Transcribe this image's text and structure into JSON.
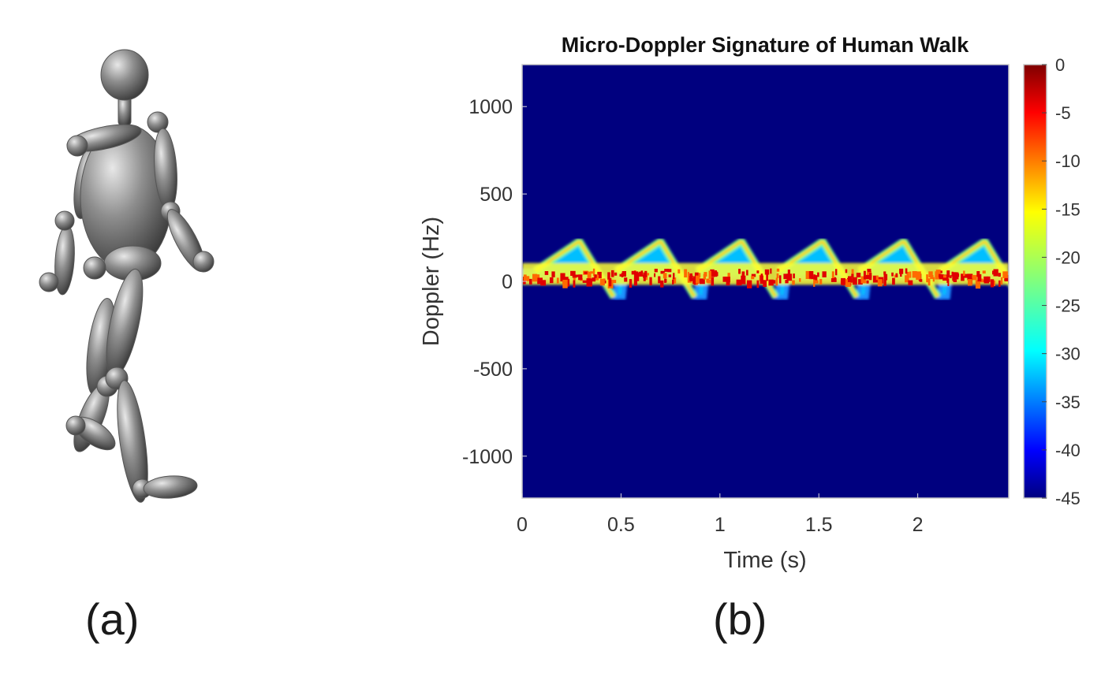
{
  "panels": {
    "a_label": "(a)",
    "b_label": "(b)"
  },
  "figure_a": {
    "kind": "human-mannequin-walking",
    "color": "#8a8a8a"
  },
  "chart_data": {
    "type": "heatmap",
    "title": "Micro-Doppler Signature of Human Walk",
    "xlabel": "Time (s)",
    "ylabel": "Doppler (Hz)",
    "xlim": [
      0,
      2.46
    ],
    "ylim": [
      -1240,
      1240
    ],
    "xticks": [
      0,
      0.5,
      1,
      1.5,
      2
    ],
    "xtick_labels": [
      "0",
      "0.5",
      "1",
      "1.5",
      "2"
    ],
    "yticks": [
      1000,
      500,
      0,
      -500,
      -1000
    ],
    "ytick_labels": [
      "1000",
      "500",
      "0",
      "-500",
      "-1000"
    ],
    "colorbar": {
      "range": [
        -45,
        0
      ],
      "ticks": [
        0,
        -5,
        -10,
        -15,
        -20,
        -25,
        -30,
        -35,
        -40,
        -45
      ],
      "tick_labels": [
        "0",
        "-5",
        "-10",
        "-15",
        "-20",
        "-25",
        "-30",
        "-35",
        "-40",
        "-45"
      ],
      "colormap": "jet"
    },
    "background_level_db": -45,
    "gait_period_s": 0.41,
    "stride_peaks_s": [
      0.29,
      0.7,
      1.11,
      1.52,
      1.93,
      2.34
    ],
    "torso_doppler_hz": 60,
    "limb_max_doppler_hz": 230,
    "limb_min_doppler_hz": -90,
    "grid": false
  }
}
